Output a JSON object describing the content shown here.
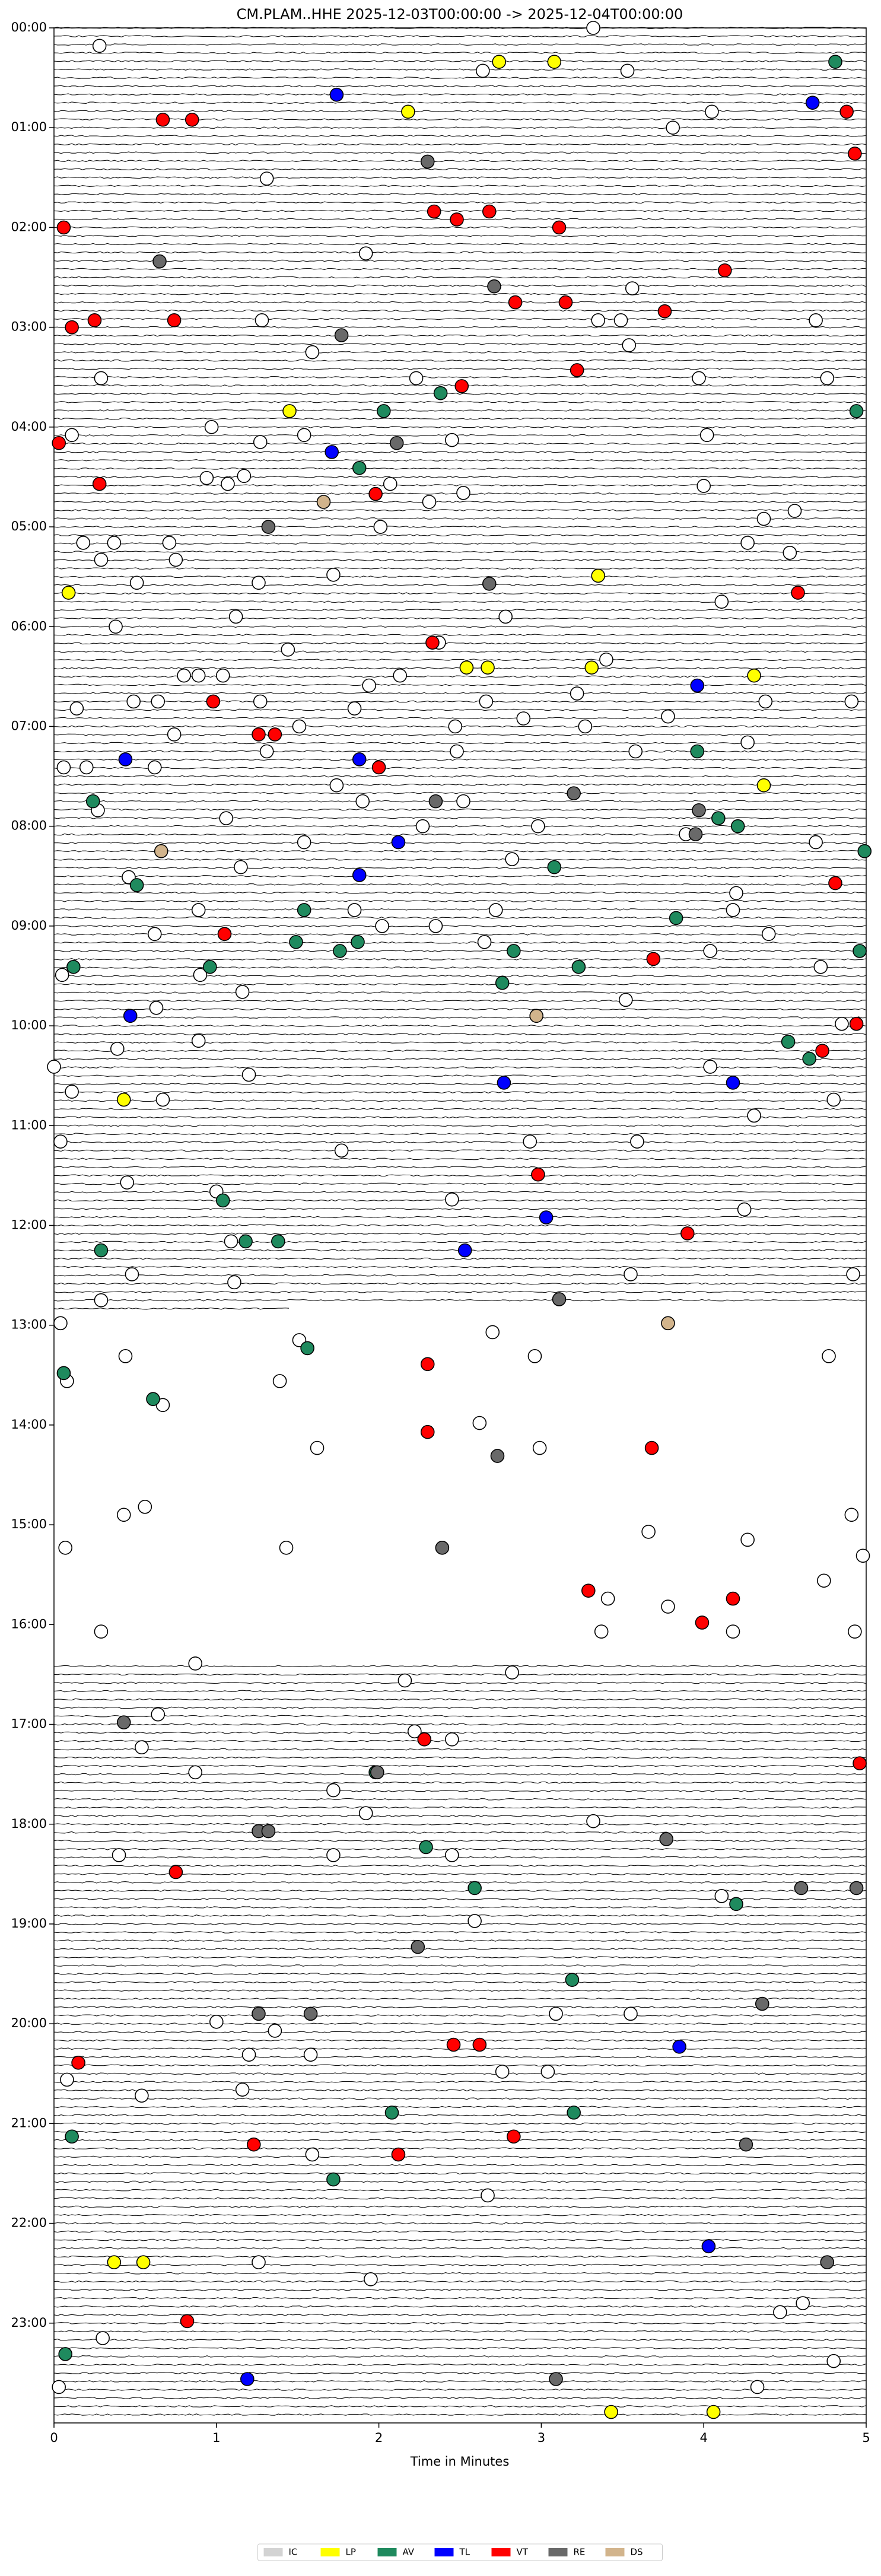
{
  "chart_data": {
    "type": "scatter",
    "title": "CM.PLAM..HHE  2025-12-03T00:00:00 -> 2025-12-04T00:00:00",
    "xlabel": "Time in Minutes",
    "xlim": [
      0,
      5
    ],
    "xticks": [
      0,
      1,
      2,
      3,
      4,
      5
    ],
    "ylim": [
      24,
      0
    ],
    "yticks": [
      {
        "value": 0,
        "label": "00:00"
      },
      {
        "value": 1,
        "label": "01:00"
      },
      {
        "value": 2,
        "label": "02:00"
      },
      {
        "value": 3,
        "label": "03:00"
      },
      {
        "value": 4,
        "label": "04:00"
      },
      {
        "value": 5,
        "label": "05:00"
      },
      {
        "value": 6,
        "label": "06:00"
      },
      {
        "value": 7,
        "label": "07:00"
      },
      {
        "value": 8,
        "label": "08:00"
      },
      {
        "value": 9,
        "label": "09:00"
      },
      {
        "value": 10,
        "label": "10:00"
      },
      {
        "value": 11,
        "label": "11:00"
      },
      {
        "value": 12,
        "label": "12:00"
      },
      {
        "value": 13,
        "label": "13:00"
      },
      {
        "value": 14,
        "label": "14:00"
      },
      {
        "value": 15,
        "label": "15:00"
      },
      {
        "value": 16,
        "label": "16:00"
      },
      {
        "value": 17,
        "label": "17:00"
      },
      {
        "value": 18,
        "label": "18:00"
      },
      {
        "value": 19,
        "label": "19:00"
      },
      {
        "value": 20,
        "label": "20:00"
      },
      {
        "value": 21,
        "label": "21:00"
      },
      {
        "value": 22,
        "label": "22:00"
      },
      {
        "value": 23,
        "label": "23:00"
      }
    ],
    "legend": "bottom",
    "series": [
      {
        "name": "IC",
        "color": "#ffffff",
        "x": [
          0.28,
          3.32,
          2.64,
          3.53,
          4.05,
          3.81,
          1.31,
          1.92,
          3.56,
          1.28,
          3.35,
          3.49,
          4.69,
          1.59,
          3.54,
          0.29,
          2.23,
          3.97,
          4.76,
          0.97,
          0.11,
          1.27,
          1.54,
          4.02,
          2.45,
          0.94,
          1.07,
          1.17,
          2.07,
          4.0,
          2.52,
          2.31,
          4.37,
          4.56,
          0.18,
          0.37,
          0.71,
          2.01,
          4.27,
          0.29,
          0.75,
          4.53,
          0.51,
          1.26,
          1.72,
          4.11,
          1.12,
          2.78,
          0.38,
          1.44,
          3.4,
          2.37,
          0.8,
          0.89,
          1.04,
          1.94,
          2.13,
          0.14,
          0.49,
          0.64,
          1.27,
          1.85,
          2.66,
          3.22,
          3.78,
          4.38,
          4.91,
          0.74,
          1.51,
          2.47,
          2.89,
          3.27,
          4.27,
          0.06,
          0.2,
          0.62,
          1.31,
          2.48,
          3.58,
          1.74,
          1.9,
          2.52,
          0.27,
          1.06,
          1.54,
          2.27,
          2.98,
          3.89,
          4.69,
          0.46,
          1.15,
          2.82,
          4.2,
          0.89,
          1.85,
          2.72,
          4.18,
          0.62,
          2.02,
          2.35,
          2.65,
          4.4,
          4.04,
          0.05,
          0.9,
          1.16,
          4.72,
          3.52,
          0.63,
          0.89,
          4.85,
          0.39,
          4.04,
          0.0,
          1.2,
          0.11,
          0.67,
          4.8,
          4.31,
          0.04,
          1.77,
          2.93,
          3.59,
          0.45,
          1.0,
          2.45,
          4.25,
          1.09,
          3.55,
          4.92,
          0.48,
          1.11,
          0.29,
          0.04,
          2.7,
          2.96,
          0.44,
          4.77,
          1.51,
          0.08,
          0.67,
          1.39,
          1.62,
          2.62,
          2.99,
          0.43,
          0.56,
          1.43,
          0.07,
          3.66,
          4.27,
          4.91,
          4.98,
          4.74,
          3.41,
          3.37,
          3.78,
          0.29,
          4.18,
          4.93,
          0.87,
          2.16,
          2.82,
          0.64,
          2.22,
          2.45,
          0.54,
          0.87,
          1.72,
          1.92,
          3.32,
          0.4,
          1.72,
          2.45,
          4.11,
          2.59,
          1.0,
          3.09,
          3.55,
          1.2,
          1.58,
          1.36,
          2.76,
          3.04,
          0.08,
          0.54,
          1.16,
          1.59,
          2.67,
          1.95,
          1.26,
          4.61,
          4.47,
          0.3,
          0.03,
          4.33,
          4.8
        ],
        "y": [
          0.18,
          0.0,
          0.43,
          0.43,
          0.84,
          1.0,
          1.51,
          2.26,
          2.61,
          2.93,
          2.93,
          2.93,
          2.93,
          3.25,
          3.18,
          3.51,
          3.51,
          3.51,
          3.51,
          4.0,
          4.08,
          4.15,
          4.08,
          4.08,
          4.13,
          4.51,
          4.57,
          4.49,
          4.57,
          4.59,
          4.66,
          4.75,
          4.92,
          4.84,
          5.16,
          5.16,
          5.16,
          5.0,
          5.16,
          5.33,
          5.33,
          5.26,
          5.56,
          5.56,
          5.48,
          5.75,
          5.9,
          5.9,
          6.0,
          6.23,
          6.33,
          6.16,
          6.49,
          6.49,
          6.49,
          6.59,
          6.49,
          6.82,
          6.75,
          6.75,
          6.75,
          6.82,
          6.75,
          6.67,
          6.9,
          6.75,
          6.75,
          7.08,
          7.0,
          7.0,
          6.92,
          7.0,
          7.16,
          7.41,
          7.41,
          7.41,
          7.25,
          7.25,
          7.25,
          7.59,
          7.75,
          7.75,
          7.84,
          7.92,
          8.16,
          8.0,
          8.0,
          8.08,
          8.16,
          8.51,
          8.41,
          8.33,
          8.67,
          8.84,
          8.84,
          8.84,
          8.84,
          9.08,
          9.0,
          9.0,
          9.16,
          9.08,
          9.25,
          9.49,
          9.49,
          9.66,
          9.41,
          9.74,
          9.82,
          10.15,
          9.98,
          10.23,
          10.41,
          10.41,
          10.49,
          10.66,
          10.74,
          10.74,
          10.9,
          11.16,
          11.25,
          11.16,
          11.16,
          11.57,
          11.66,
          11.74,
          11.84,
          12.16,
          12.49,
          12.49,
          12.49,
          12.57,
          12.75,
          12.98,
          13.07,
          13.31,
          13.31,
          13.31,
          13.15,
          13.56,
          13.8,
          13.56,
          14.23,
          13.98,
          14.23,
          14.9,
          14.82,
          15.23,
          15.23,
          15.07,
          15.15,
          14.9,
          15.31,
          15.56,
          15.74,
          16.07,
          15.82,
          16.07,
          16.07,
          16.07,
          16.39,
          16.56,
          16.48,
          16.9,
          17.07,
          17.15,
          17.23,
          17.48,
          17.66,
          17.89,
          17.97,
          18.31,
          18.31,
          18.31,
          18.72,
          18.97,
          19.98,
          19.9,
          19.9,
          20.31,
          20.31,
          20.07,
          20.48,
          20.48,
          20.56,
          20.72,
          20.66,
          21.31,
          21.72,
          22.56,
          22.39,
          22.8,
          22.89,
          23.15,
          23.64,
          23.64,
          23.38
        ]
      },
      {
        "name": "LP",
        "color": "#ffff00",
        "x": [
          2.74,
          3.08,
          2.18,
          1.45,
          3.35,
          0.09,
          2.54,
          2.67,
          3.31,
          4.31,
          4.37,
          0.43,
          0.37,
          0.55,
          3.43,
          4.06
        ],
        "y": [
          0.34,
          0.34,
          0.84,
          3.84,
          5.49,
          5.66,
          6.41,
          6.41,
          6.41,
          6.49,
          7.59,
          10.74,
          22.39,
          22.39,
          23.89,
          23.89
        ]
      },
      {
        "name": "AV",
        "color": "#1f8a5e",
        "x": [
          4.81,
          2.03,
          1.88,
          2.38,
          4.94,
          3.96,
          0.24,
          4.09,
          4.21,
          4.99,
          0.51,
          3.08,
          1.54,
          3.83,
          0.12,
          0.96,
          1.49,
          1.76,
          1.87,
          2.83,
          3.23,
          2.76,
          4.96,
          4.52,
          4.65,
          1.04,
          1.18,
          1.38,
          0.29,
          1.56,
          0.06,
          0.61,
          2.29,
          2.59,
          4.2,
          1.98,
          3.19,
          2.08,
          3.2,
          0.11,
          1.72,
          0.07
        ],
        "y": [
          0.34,
          3.84,
          4.41,
          3.66,
          3.84,
          7.25,
          7.75,
          7.92,
          8.0,
          8.25,
          8.59,
          8.41,
          8.84,
          8.92,
          9.41,
          9.41,
          9.16,
          9.25,
          9.16,
          9.25,
          9.41,
          9.57,
          9.25,
          10.16,
          10.33,
          11.75,
          12.16,
          12.16,
          12.25,
          13.23,
          13.48,
          13.74,
          18.23,
          18.64,
          18.8,
          17.48,
          19.56,
          20.89,
          20.89,
          21.13,
          21.56,
          23.31
        ]
      },
      {
        "name": "TL",
        "color": "#0000ff",
        "x": [
          1.74,
          4.67,
          1.71,
          0.44,
          1.88,
          2.12,
          1.88,
          0.47,
          2.77,
          4.18,
          3.03,
          2.53,
          3.96,
          3.85,
          4.03,
          1.19
        ],
        "y": [
          0.67,
          0.75,
          4.25,
          7.33,
          7.33,
          8.16,
          8.49,
          9.9,
          10.57,
          10.57,
          11.92,
          12.25,
          6.59,
          20.23,
          22.23,
          23.56
        ]
      },
      {
        "name": "VT",
        "color": "#ff0000",
        "x": [
          4.88,
          0.67,
          0.85,
          4.93,
          0.06,
          2.34,
          2.48,
          2.68,
          3.11,
          4.13,
          2.84,
          3.15,
          3.76,
          0.11,
          0.25,
          0.74,
          3.22,
          2.51,
          0.03,
          0.28,
          1.98,
          4.58,
          2.33,
          0.98,
          1.26,
          1.36,
          2.0,
          4.81,
          1.05,
          3.69,
          4.94,
          4.73,
          2.98,
          3.9,
          2.3,
          2.3,
          3.68,
          3.29,
          4.18,
          3.99,
          2.28,
          4.96,
          0.75,
          2.46,
          2.62,
          0.15,
          1.23,
          2.12,
          2.83,
          0.82
        ],
        "y": [
          0.84,
          0.92,
          0.92,
          1.26,
          2.0,
          1.84,
          1.92,
          1.84,
          2.0,
          2.43,
          2.75,
          2.75,
          2.84,
          3.0,
          2.93,
          2.93,
          3.43,
          3.59,
          4.16,
          4.57,
          4.67,
          5.66,
          6.16,
          6.75,
          7.08,
          7.08,
          7.41,
          8.57,
          9.08,
          9.33,
          9.98,
          10.25,
          11.49,
          12.08,
          13.39,
          14.07,
          14.23,
          15.66,
          15.74,
          15.98,
          17.15,
          17.39,
          18.48,
          20.21,
          20.21,
          20.39,
          21.21,
          21.31,
          21.13,
          22.98
        ]
      },
      {
        "name": "RE",
        "color": "#696969",
        "x": [
          2.3,
          0.65,
          2.71,
          1.77,
          2.11,
          1.32,
          2.68,
          3.2,
          2.35,
          3.97,
          3.95,
          3.11,
          2.73,
          2.39,
          0.43,
          1.99,
          3.77,
          1.26,
          1.32,
          4.6,
          4.94,
          2.24,
          1.26,
          1.58,
          4.36,
          3.09,
          4.76,
          4.26
        ],
        "y": [
          1.34,
          2.34,
          2.59,
          3.08,
          4.16,
          5.0,
          5.57,
          7.67,
          7.75,
          7.84,
          8.08,
          12.74,
          14.31,
          15.23,
          16.98,
          17.48,
          18.15,
          18.07,
          18.07,
          18.64,
          18.64,
          19.23,
          19.9,
          19.9,
          19.8,
          23.56,
          22.39,
          21.21
        ]
      },
      {
        "name": "DS",
        "color": "#d2b48c",
        "x": [
          1.66,
          0.66,
          2.97,
          3.78
        ],
        "y": [
          4.75,
          8.25,
          9.9,
          12.98
        ]
      }
    ]
  }
}
